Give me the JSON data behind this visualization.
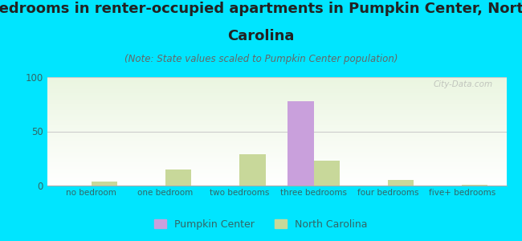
{
  "title_line1": "Bedrooms in renter-occupied apartments in Pumpkin Center, North",
  "title_line2": "Carolina",
  "subtitle": "(Note: State values scaled to Pumpkin Center population)",
  "categories": [
    "no bedroom",
    "one bedroom",
    "two bedrooms",
    "three bedrooms",
    "four bedrooms",
    "five+ bedrooms"
  ],
  "pumpkin_values": [
    0,
    0,
    0,
    78,
    0,
    0
  ],
  "nc_values": [
    4,
    15,
    29,
    23,
    5,
    1
  ],
  "pumpkin_color": "#c9a0dc",
  "nc_color": "#c8d89a",
  "ylim": [
    0,
    100
  ],
  "yticks": [
    0,
    50,
    100
  ],
  "background_color": "#00e5ff",
  "plot_bg_top": "#eaf5e0",
  "plot_bg_bottom": "#ffffff",
  "title_fontsize": 13,
  "subtitle_fontsize": 8.5,
  "watermark": "City-Data.com",
  "bar_width": 0.35
}
